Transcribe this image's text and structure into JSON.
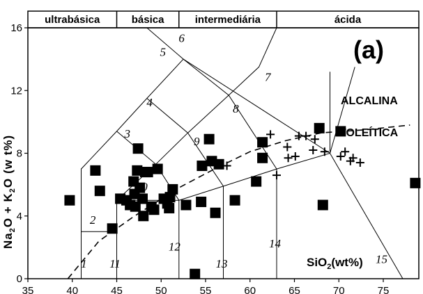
{
  "chart_data": {
    "type": "scatter",
    "panel_label": "(a)",
    "xlim": [
      35,
      79
    ],
    "ylim": [
      0,
      16
    ],
    "x_ticks": [
      "35",
      "40",
      "45",
      "50",
      "55",
      "60",
      "65",
      "70",
      "75"
    ],
    "y_ticks": [
      "0",
      "4",
      "8",
      "12",
      "16"
    ],
    "ylabel": {
      "a": "Na",
      "b": "O + K",
      "c": "O",
      "d": "(w t%)",
      "sub": "2"
    },
    "xlabel": {
      "a": "SiO",
      "b": "(wt%)",
      "sub": "2"
    },
    "bands": [
      {
        "label": "ultrabásica",
        "from": 35,
        "to": 45
      },
      {
        "label": "básica",
        "from": 45,
        "to": 52
      },
      {
        "label": "intermediária",
        "from": 52,
        "to": 63
      },
      {
        "label": "ácida",
        "from": 63,
        "to": 79
      }
    ],
    "series_labels": {
      "alkaline": "ALCALINA",
      "tholeiitic": "TOLEÍTICA"
    },
    "field_numbers": [
      {
        "n": "1",
        "x": 41.3,
        "y": 0.7
      },
      {
        "n": "2",
        "x": 42.3,
        "y": 3.5
      },
      {
        "n": "3",
        "x": 46.2,
        "y": 9.0
      },
      {
        "n": "4",
        "x": 48.7,
        "y": 11.0
      },
      {
        "n": "5",
        "x": 50.2,
        "y": 14.2
      },
      {
        "n": "6",
        "x": 52.3,
        "y": 15.1
      },
      {
        "n": "7",
        "x": 62.0,
        "y": 12.6
      },
      {
        "n": "8",
        "x": 58.4,
        "y": 10.6
      },
      {
        "n": "9",
        "x": 54.0,
        "y": 8.5
      },
      {
        "n": "10",
        "x": 47.8,
        "y": 5.6
      },
      {
        "n": "11",
        "x": 44.8,
        "y": 0.7
      },
      {
        "n": "12",
        "x": 51.5,
        "y": 1.8
      },
      {
        "n": "13",
        "x": 56.8,
        "y": 0.7
      },
      {
        "n": "14",
        "x": 62.8,
        "y": 2.0
      },
      {
        "n": "15",
        "x": 74.8,
        "y": 1.0
      }
    ],
    "tas_field_boundaries": [
      [
        [
          41,
          0
        ],
        [
          41,
          7
        ],
        [
          45,
          9.4
        ],
        [
          48.4,
          11.5
        ],
        [
          52.5,
          14
        ],
        [
          48.4,
          16
        ]
      ],
      [
        [
          41,
          3
        ],
        [
          45,
          3
        ],
        [
          45,
          5
        ],
        [
          52,
          5
        ],
        [
          57,
          5.9
        ],
        [
          63,
          7
        ],
        [
          69,
          8
        ],
        [
          71.8,
          13.5
        ]
      ],
      [
        [
          45,
          0
        ],
        [
          45,
          5
        ]
      ],
      [
        [
          45,
          5
        ],
        [
          49.4,
          7.3
        ],
        [
          53,
          9.3
        ],
        [
          57.6,
          11.7
        ],
        [
          61,
          13.5
        ],
        [
          63,
          16
        ]
      ],
      [
        [
          45,
          9.4
        ],
        [
          49.4,
          7.3
        ],
        [
          52,
          5
        ],
        [
          52,
          0
        ]
      ],
      [
        [
          48.4,
          11.5
        ],
        [
          53,
          9.3
        ],
        [
          57,
          5.9
        ],
        [
          57,
          0
        ]
      ],
      [
        [
          52.5,
          14
        ],
        [
          57.6,
          11.7
        ],
        [
          63,
          7
        ],
        [
          63,
          0
        ]
      ],
      [
        [
          52.5,
          14
        ],
        [
          69,
          8
        ]
      ],
      [
        [
          69,
          8
        ],
        [
          69,
          13.2
        ]
      ],
      [
        [
          69,
          8
        ],
        [
          77.2,
          0
        ]
      ]
    ],
    "alkaline_tholeiitic_divider": [
      [
        39.5,
        0
      ],
      [
        43,
        2.4
      ],
      [
        47,
        4.0
      ],
      [
        52,
        5.8
      ],
      [
        56,
        7.0
      ],
      [
        60,
        8.1
      ],
      [
        64,
        8.8
      ],
      [
        68,
        9.3
      ],
      [
        73,
        9.5
      ],
      [
        78,
        9.8
      ]
    ],
    "series": [
      {
        "marker": "square",
        "points": [
          [
            39.7,
            5.0
          ],
          [
            42.6,
            6.9
          ],
          [
            43.1,
            5.6
          ],
          [
            44.5,
            3.2
          ],
          [
            45.4,
            5.1
          ],
          [
            46.1,
            5.0
          ],
          [
            46.5,
            4.7
          ],
          [
            46.9,
            6.2
          ],
          [
            47.0,
            5.4
          ],
          [
            47.1,
            4.6
          ],
          [
            47.3,
            6.9
          ],
          [
            47.4,
            8.3
          ],
          [
            47.6,
            5.8
          ],
          [
            47.9,
            5.1
          ],
          [
            48.0,
            4.0
          ],
          [
            48.2,
            6.8
          ],
          [
            48.5,
            6.8
          ],
          [
            48.9,
            4.6
          ],
          [
            49.2,
            4.4
          ],
          [
            49.6,
            7.0
          ],
          [
            50.3,
            5.1
          ],
          [
            50.7,
            4.8
          ],
          [
            50.9,
            4.5
          ],
          [
            51.0,
            5.2
          ],
          [
            51.3,
            5.7
          ],
          [
            52.8,
            4.7
          ],
          [
            53.8,
            0.3
          ],
          [
            54.5,
            4.9
          ],
          [
            54.6,
            7.2
          ],
          [
            55.4,
            8.9
          ],
          [
            55.7,
            7.5
          ],
          [
            56.1,
            4.2
          ],
          [
            56.5,
            7.3
          ],
          [
            58.3,
            5.0
          ],
          [
            60.7,
            6.2
          ],
          [
            61.4,
            8.7
          ],
          [
            61.4,
            7.7
          ],
          [
            67.8,
            9.6
          ],
          [
            68.2,
            4.7
          ],
          [
            70.2,
            9.4
          ],
          [
            78.6,
            6.1
          ]
        ]
      },
      {
        "marker": "plus",
        "points": [
          [
            57.4,
            7.2
          ],
          [
            62.3,
            9.2
          ],
          [
            63.0,
            6.6
          ],
          [
            64.2,
            8.4
          ],
          [
            64.3,
            7.7
          ],
          [
            65.1,
            7.8
          ],
          [
            65.5,
            9.1
          ],
          [
            66.3,
            9.1
          ],
          [
            67.1,
            8.2
          ],
          [
            67.3,
            8.9
          ],
          [
            68.4,
            8.1
          ],
          [
            70.2,
            7.8
          ],
          [
            70.7,
            8.1
          ],
          [
            71.3,
            7.5
          ],
          [
            71.6,
            7.7
          ],
          [
            72.4,
            7.4
          ]
        ]
      }
    ]
  }
}
